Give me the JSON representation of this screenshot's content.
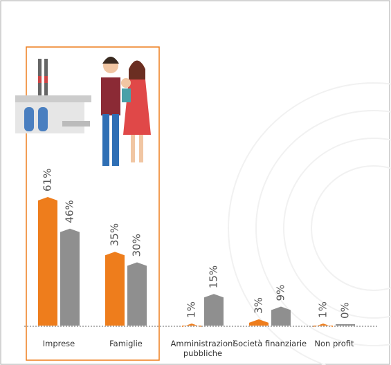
{
  "chart_data": {
    "type": "bar",
    "categories": [
      "Imprese",
      "Famiglie",
      "Amministrazioni pubbliche",
      "Società finanziarie",
      "Non profit"
    ],
    "series": [
      {
        "color": "#ee7d1c",
        "values": [
          61,
          35,
          1,
          3,
          1
        ],
        "value_labels": [
          "61%",
          "35%",
          "1%",
          "3%",
          "1%"
        ]
      },
      {
        "color": "#8f8f8f",
        "values": [
          46,
          30,
          15,
          9,
          0
        ],
        "value_labels": [
          "46%",
          "30%",
          "15%",
          "9%",
          "0%"
        ]
      }
    ]
  }
}
